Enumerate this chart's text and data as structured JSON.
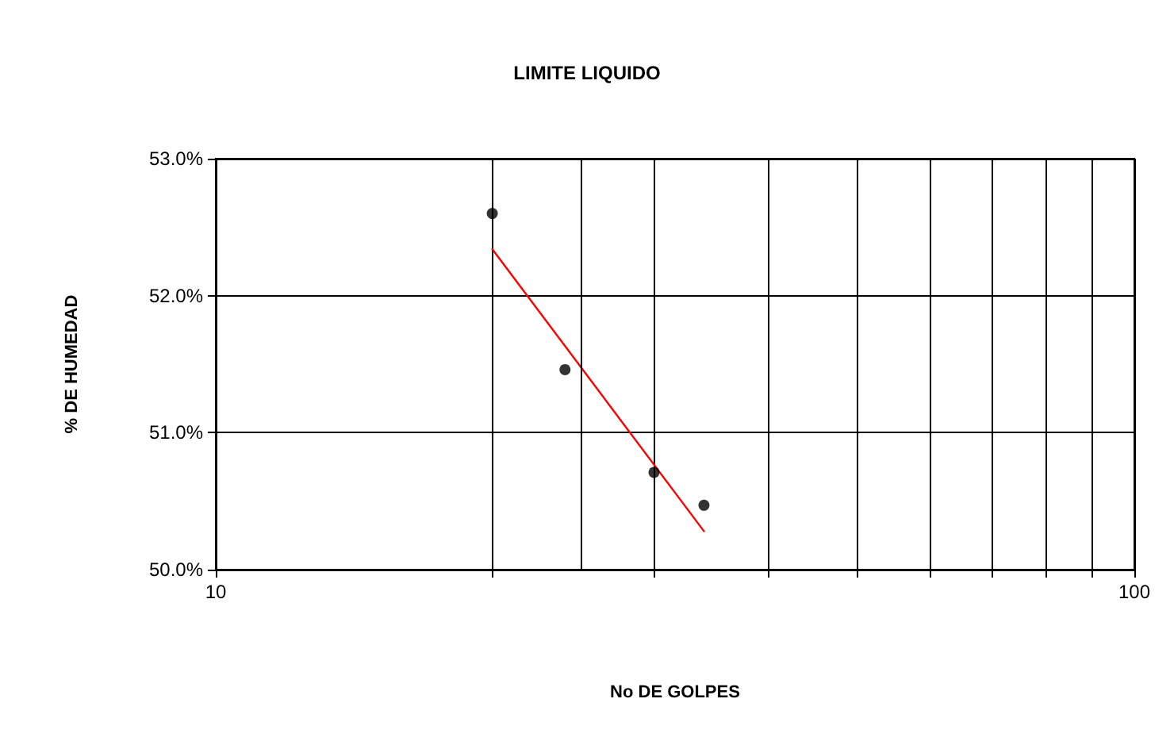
{
  "chart_data": {
    "type": "scatter",
    "title": "LIMITE LIQUIDO",
    "xlabel": "No DE GOLPES",
    "ylabel": "% DE HUMEDAD",
    "log": "x",
    "grid": true,
    "xlim": [
      10,
      100
    ],
    "xticks": [
      10,
      {
        "value": 20,
        "label": null
      },
      {
        "value": 30,
        "label": null
      },
      {
        "value": 40,
        "label": null
      },
      {
        "value": 50,
        "label": null
      },
      {
        "value": 60,
        "label": null
      },
      {
        "value": 70,
        "label": null
      },
      {
        "value": 80,
        "label": null
      },
      {
        "value": 90,
        "label": null
      },
      100
    ],
    "ylim": [
      50,
      53
    ],
    "yticks": [
      {
        "value": 50,
        "label": "50.0%"
      },
      {
        "value": 51,
        "label": "51.0%"
      },
      {
        "value": 52,
        "label": "52.0%"
      },
      {
        "value": 53,
        "label": "53.0%"
      }
    ],
    "series": [
      {
        "color": "#000000",
        "marker": "circle",
        "x": [
          20,
          24,
          30,
          34
        ],
        "values": [
          52.6,
          51.46,
          50.71,
          50.47
        ]
      },
      {
        "type": "line",
        "color": "#ff0000",
        "marker": "none",
        "line_style": "solid",
        "x": [
          20,
          34
        ],
        "values": [
          52.34,
          50.28
        ]
      }
    ],
    "ref_lines": [
      {
        "axis": "x",
        "value": 25,
        "color": "#000000",
        "line_style": "solid"
      }
    ]
  }
}
